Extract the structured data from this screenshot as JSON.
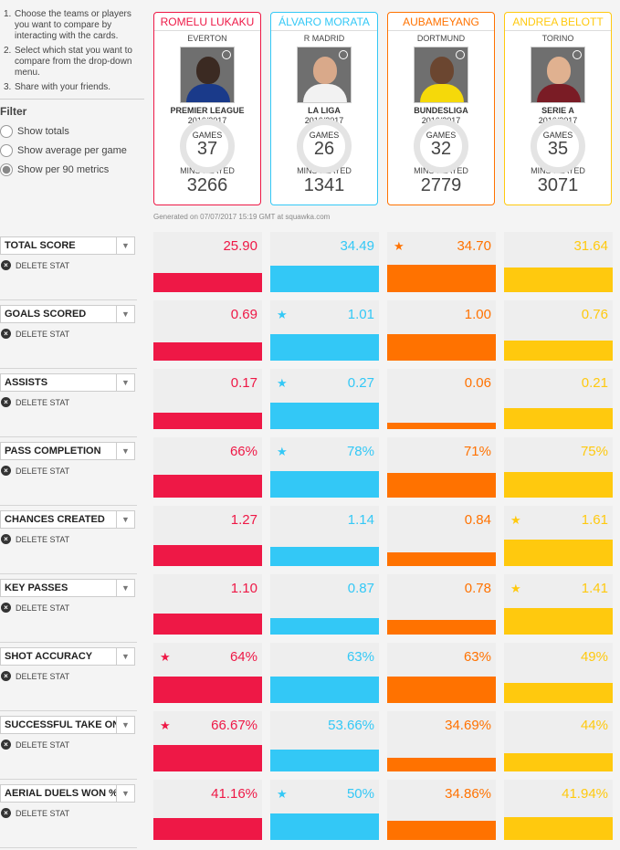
{
  "instructions": [
    {
      "num": "1.",
      "text": "Choose the teams or players you want to compare by interacting with the cards."
    },
    {
      "num": "2.",
      "text": "Select which stat you want to compare from the drop-down menu."
    },
    {
      "num": "3.",
      "text": "Share with your friends."
    }
  ],
  "filter": {
    "title": "Filter",
    "options": [
      {
        "label": "Show totals",
        "selected": false
      },
      {
        "label": "Show average per game",
        "selected": false
      },
      {
        "label": "Show per 90 metrics",
        "selected": true
      }
    ]
  },
  "delete_label": "DELETE STAT",
  "colors": {
    "lukaku": "#ee1846",
    "morata": "#33c8f6",
    "aubameyang": "#ff7200",
    "belotti": "#ffc90e"
  },
  "players": [
    {
      "name": "ROMELU LUKAKU",
      "club": "EVERTON",
      "league": "PREMIER LEAGUE",
      "season": "2016/2017",
      "games_label": "GAMES",
      "games": "37",
      "mins_label": "MINS PLAYED",
      "mins": "3266",
      "color": "#ee1846",
      "skin": "#3b2a22",
      "shirt": "#1a3a8a"
    },
    {
      "name": "ÁLVARO MORATA",
      "club": "R MADRID",
      "league": "LA LIGA",
      "season": "2016/2017",
      "games_label": "GAMES",
      "games": "26",
      "mins_label": "MINS PLAYED",
      "mins": "1341",
      "color": "#33c8f6",
      "skin": "#d9a98a",
      "shirt": "#f2f2f2"
    },
    {
      "name": "AUBAMEYANG",
      "club": "DORTMUND",
      "league": "BUNDESLIGA",
      "season": "2016/2017",
      "games_label": "GAMES",
      "games": "32",
      "mins_label": "MINS PLAYED",
      "mins": "2779",
      "color": "#ff7200",
      "skin": "#6b4630",
      "shirt": "#f5d90a"
    },
    {
      "name": "ANDREA BELOTT",
      "club": "TORINO",
      "league": "SERIE A",
      "season": "2016/2017",
      "games_label": "GAMES",
      "games": "35",
      "mins_label": "MINS PLAYED",
      "mins": "3071",
      "color": "#ffc90e",
      "skin": "#e0b190",
      "shirt": "#7a1c25"
    }
  ],
  "generated": "Generated on 07/07/2017 15:19 GMT at squawka.com",
  "stats": [
    {
      "name": "TOTAL SCORE",
      "cells": [
        {
          "value": "25.90",
          "star": false,
          "fill": 0.46
        },
        {
          "value": "34.49",
          "star": false,
          "fill": 0.63
        },
        {
          "value": "34.70",
          "star": true,
          "fill": 0.64
        },
        {
          "value": "31.64",
          "star": false,
          "fill": 0.57
        }
      ]
    },
    {
      "name": "GOALS SCORED",
      "cells": [
        {
          "value": "0.69",
          "star": false,
          "fill": 0.43
        },
        {
          "value": "1.01",
          "star": true,
          "fill": 0.63
        },
        {
          "value": "1.00",
          "star": false,
          "fill": 0.62
        },
        {
          "value": "0.76",
          "star": false,
          "fill": 0.47
        }
      ]
    },
    {
      "name": "ASSISTS",
      "cells": [
        {
          "value": "0.17",
          "star": false,
          "fill": 0.38
        },
        {
          "value": "0.27",
          "star": true,
          "fill": 0.63
        },
        {
          "value": "0.06",
          "star": false,
          "fill": 0.14
        },
        {
          "value": "0.21",
          "star": false,
          "fill": 0.49
        }
      ]
    },
    {
      "name": "PASS COMPLETION",
      "cells": [
        {
          "value": "66%",
          "star": false,
          "fill": 0.53
        },
        {
          "value": "78%",
          "star": true,
          "fill": 0.63
        },
        {
          "value": "71%",
          "star": false,
          "fill": 0.57
        },
        {
          "value": "75%",
          "star": false,
          "fill": 0.61
        }
      ]
    },
    {
      "name": "CHANCES CREATED",
      "cells": [
        {
          "value": "1.27",
          "star": false,
          "fill": 0.5
        },
        {
          "value": "1.14",
          "star": false,
          "fill": 0.45
        },
        {
          "value": "0.84",
          "star": false,
          "fill": 0.33
        },
        {
          "value": "1.61",
          "star": true,
          "fill": 0.63
        }
      ]
    },
    {
      "name": "KEY PASSES",
      "cells": [
        {
          "value": "1.10",
          "star": false,
          "fill": 0.49
        },
        {
          "value": "0.87",
          "star": false,
          "fill": 0.39
        },
        {
          "value": "0.78",
          "star": false,
          "fill": 0.35
        },
        {
          "value": "1.41",
          "star": true,
          "fill": 0.63
        }
      ]
    },
    {
      "name": "SHOT ACCURACY",
      "cells": [
        {
          "value": "64%",
          "star": true,
          "fill": 0.63
        },
        {
          "value": "63%",
          "star": false,
          "fill": 0.62
        },
        {
          "value": "63%",
          "star": false,
          "fill": 0.62
        },
        {
          "value": "49%",
          "star": false,
          "fill": 0.48
        }
      ]
    },
    {
      "name": "SUCCESSFUL TAKE ON",
      "cells": [
        {
          "value": "66.67%",
          "star": true,
          "fill": 0.63
        },
        {
          "value": "53.66%",
          "star": false,
          "fill": 0.51
        },
        {
          "value": "34.69%",
          "star": false,
          "fill": 0.33
        },
        {
          "value": "44%",
          "star": false,
          "fill": 0.42
        }
      ]
    },
    {
      "name": "AERIAL DUELS WON %",
      "cells": [
        {
          "value": "41.16%",
          "star": false,
          "fill": 0.52
        },
        {
          "value": "50%",
          "star": true,
          "fill": 0.63
        },
        {
          "value": "34.86%",
          "star": false,
          "fill": 0.44
        },
        {
          "value": "41.94%",
          "star": false,
          "fill": 0.53
        }
      ]
    }
  ]
}
